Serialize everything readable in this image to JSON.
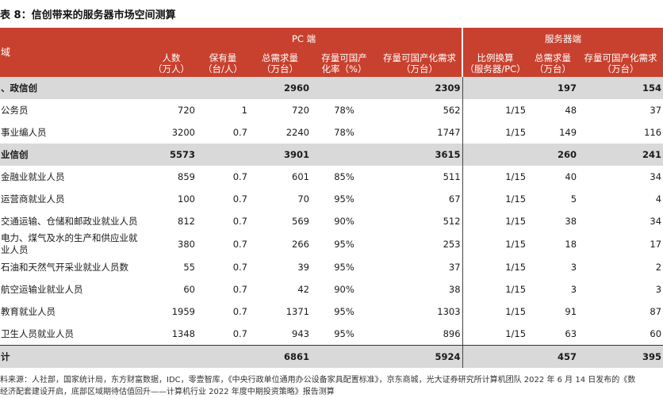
{
  "title": "表 8：信创带来的服务器市场空间测算",
  "header": {
    "region_label": "域",
    "pc_group": "PC 端",
    "server_group": "服务器端",
    "columns": [
      {
        "l1": "人数",
        "l2": "（万人）"
      },
      {
        "l1": "保有量",
        "l2": "（台/人）"
      },
      {
        "l1": "总需求量",
        "l2": "（万台）"
      },
      {
        "l1": "存量可国产",
        "l2": "化率（%）"
      },
      {
        "l1": "存量可国产化需求",
        "l2": "（万台）"
      },
      {
        "l1": "比例换算",
        "l2": "（服务器/PC）"
      },
      {
        "l1": "总需求量",
        "l2": "（万台）"
      },
      {
        "l1": "存量可国产化需求",
        "l2": "（万台）"
      }
    ]
  },
  "rows": [
    {
      "type": "grp",
      "cells": [
        "、政信创",
        "",
        "",
        "2960",
        "",
        "2309",
        "",
        "197",
        "154"
      ]
    },
    {
      "type": "row",
      "cells": [
        "公务员",
        "720",
        "1",
        "720",
        "78%",
        "562",
        "1/15",
        "48",
        "37"
      ]
    },
    {
      "type": "row",
      "cells": [
        "事业编人员",
        "3200",
        "0.7",
        "2240",
        "78%",
        "1747",
        "1/15",
        "149",
        "116"
      ]
    },
    {
      "type": "grp",
      "cells": [
        "业信创",
        "5573",
        "",
        "3901",
        "",
        "3615",
        "",
        "260",
        "241"
      ]
    },
    {
      "type": "row",
      "cells": [
        "金融业就业人员",
        "859",
        "0.7",
        "601",
        "85%",
        "511",
        "1/15",
        "40",
        "34"
      ]
    },
    {
      "type": "row",
      "cells": [
        "运营商就业人员",
        "100",
        "0.7",
        "70",
        "95%",
        "67",
        "1/15",
        "5",
        "4"
      ]
    },
    {
      "type": "row",
      "cells": [
        "交通运输、仓储和邮政业就业人员",
        "812",
        "0.7",
        "569",
        "90%",
        "512",
        "1/15",
        "38",
        "34"
      ]
    },
    {
      "type": "row wrap",
      "cells": [
        "电力、煤气及水的生产和供应业就业人员",
        "380",
        "0.7",
        "266",
        "95%",
        "253",
        "1/15",
        "18",
        "17"
      ]
    },
    {
      "type": "row",
      "cells": [
        "石油和天然气开采业就业人员数",
        "55",
        "0.7",
        "39",
        "95%",
        "37",
        "1/15",
        "3",
        "2"
      ]
    },
    {
      "type": "row",
      "cells": [
        "航空运输业就业人员",
        "60",
        "0.7",
        "42",
        "90%",
        "38",
        "1/15",
        "3",
        "3"
      ]
    },
    {
      "type": "row",
      "cells": [
        "教育就业人员",
        "1959",
        "0.7",
        "1371",
        "95%",
        "1303",
        "1/15",
        "91",
        "87"
      ]
    },
    {
      "type": "row last",
      "cells": [
        "卫生人员就业人员",
        "1348",
        "0.7",
        "943",
        "95%",
        "896",
        "1/15",
        "63",
        "60"
      ]
    },
    {
      "type": "tot",
      "cells": [
        "计",
        "",
        "",
        "6861",
        "",
        "5924",
        "",
        "457",
        "395"
      ]
    }
  ],
  "note": "料来源：人社部，国家统计局，东方财富数据，IDC，零壹智库，《中央行政单位通用办公设备家具配置标准》，京东商城，光大证券研究所计算机团队 2022 年 6 月 14 日发布的《数",
  "note2": "经济配套建设开启，底部区域期待估值回升——计算机行业 2022 年度中期投资策略》报告测算"
}
